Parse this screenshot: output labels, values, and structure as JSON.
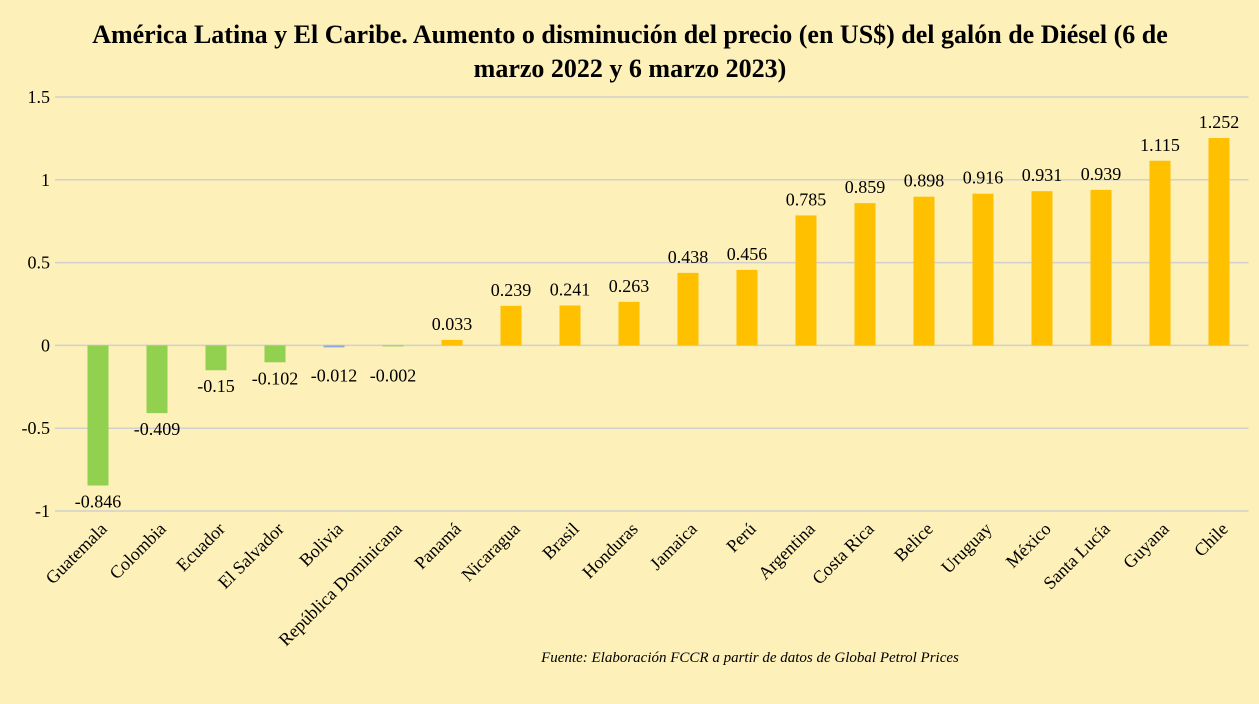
{
  "chart_data": {
    "type": "bar",
    "title": "América Latina y El Caribe. Aumento o disminución del precio (en US$) del galón de Diésel (6 de marzo 2022 y 6 marzo 2023)",
    "categories": [
      "Guatemala",
      "Colombia",
      "Ecuador",
      "El Salvador",
      "Bolivia",
      "República Dominicana",
      "Panamá",
      "Nicaragua",
      "Brasil",
      "Honduras",
      "Jamaica",
      "Perú",
      "Argentina",
      "Costa Rica",
      "Belice",
      "Uruguay",
      "México",
      "Santa Lucía",
      "Guyana",
      "Chile"
    ],
    "values": [
      -0.846,
      -0.409,
      -0.15,
      -0.102,
      -0.012,
      -0.002,
      0.033,
      0.239,
      0.241,
      0.263,
      0.438,
      0.456,
      0.785,
      0.859,
      0.898,
      0.916,
      0.931,
      0.939,
      1.115,
      1.252
    ],
    "colors": [
      "#92d050",
      "#92d050",
      "#92d050",
      "#92d050",
      "#8faadc",
      "#92d050",
      "#ffc000",
      "#ffc000",
      "#ffc000",
      "#ffc000",
      "#ffc000",
      "#ffc000",
      "#ffc000",
      "#ffc000",
      "#ffc000",
      "#ffc000",
      "#ffc000",
      "#ffc000",
      "#ffc000",
      "#ffc000"
    ],
    "ylim": [
      -1,
      1.5
    ],
    "yticks": [
      -1,
      -0.5,
      0,
      0.5,
      1,
      1.5
    ],
    "grid": true,
    "source": "Fuente: Elaboración FCCR a partir de datos de Global Petrol Prices"
  }
}
